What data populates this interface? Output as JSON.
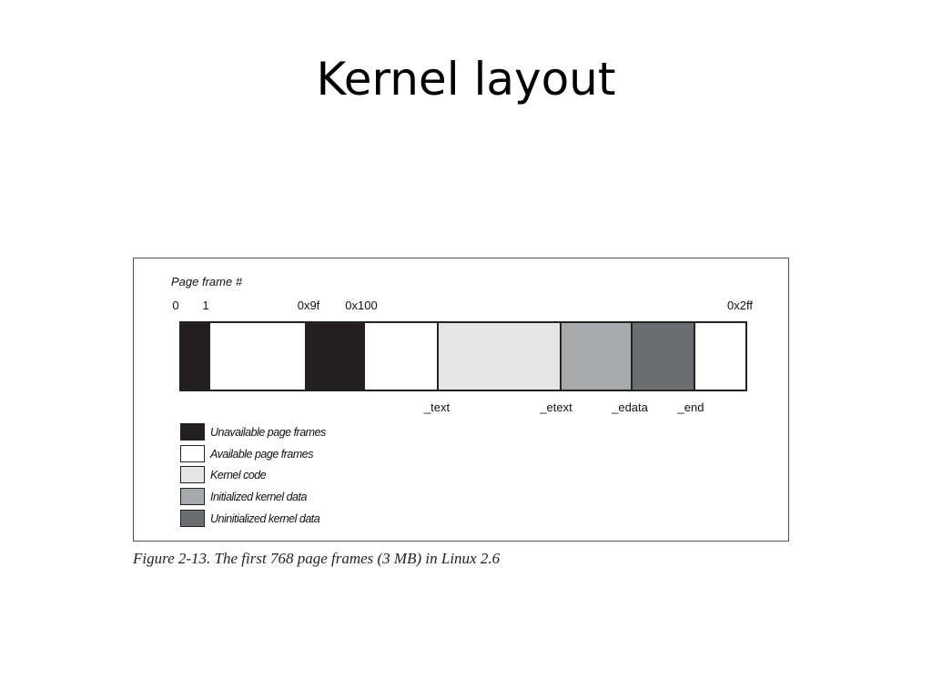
{
  "slide": {
    "title": "Kernel layout"
  },
  "figure": {
    "axis_label": "Page frame #",
    "caption": "Figure 2-13. The first 768 page frames (3 MB) in Linux 2.6",
    "top_labels": [
      {
        "id": "0",
        "text": "0"
      },
      {
        "id": "1",
        "text": "1"
      },
      {
        "id": "0x9f",
        "text": "0x9f"
      },
      {
        "id": "0x100",
        "text": "0x100"
      },
      {
        "id": "0x2ff",
        "text": "0x2ff"
      }
    ],
    "bottom_labels": [
      {
        "id": "text",
        "text": "_text"
      },
      {
        "id": "etext",
        "text": "_etext"
      },
      {
        "id": "edata",
        "text": "_edata"
      },
      {
        "id": "end",
        "text": "_end"
      }
    ],
    "segments": [
      {
        "kind": "unavailable",
        "color": "#231f20"
      },
      {
        "kind": "available",
        "color": "#ffffff"
      },
      {
        "kind": "unavailable",
        "color": "#231f20"
      },
      {
        "kind": "available",
        "color": "#ffffff"
      },
      {
        "kind": "kernel-code",
        "color": "#e6e6e6"
      },
      {
        "kind": "initialized-data",
        "color": "#a7a9ac"
      },
      {
        "kind": "uninitialized-data",
        "color": "#6d6e71"
      },
      {
        "kind": "available",
        "color": "#ffffff"
      }
    ],
    "legend": [
      {
        "kind": "unavailable",
        "label": "Unavailable page frames",
        "color": "#231f20"
      },
      {
        "kind": "available",
        "label": "Available page frames",
        "color": "#ffffff"
      },
      {
        "kind": "kernel-code",
        "label": "Kernel code",
        "color": "#e6e6e6"
      },
      {
        "kind": "initialized-data",
        "label": "Initialized kernel data",
        "color": "#a7a9ac"
      },
      {
        "kind": "uninitialized-data",
        "label": "Uninitialized kernel data",
        "color": "#6d6e71"
      }
    ]
  }
}
